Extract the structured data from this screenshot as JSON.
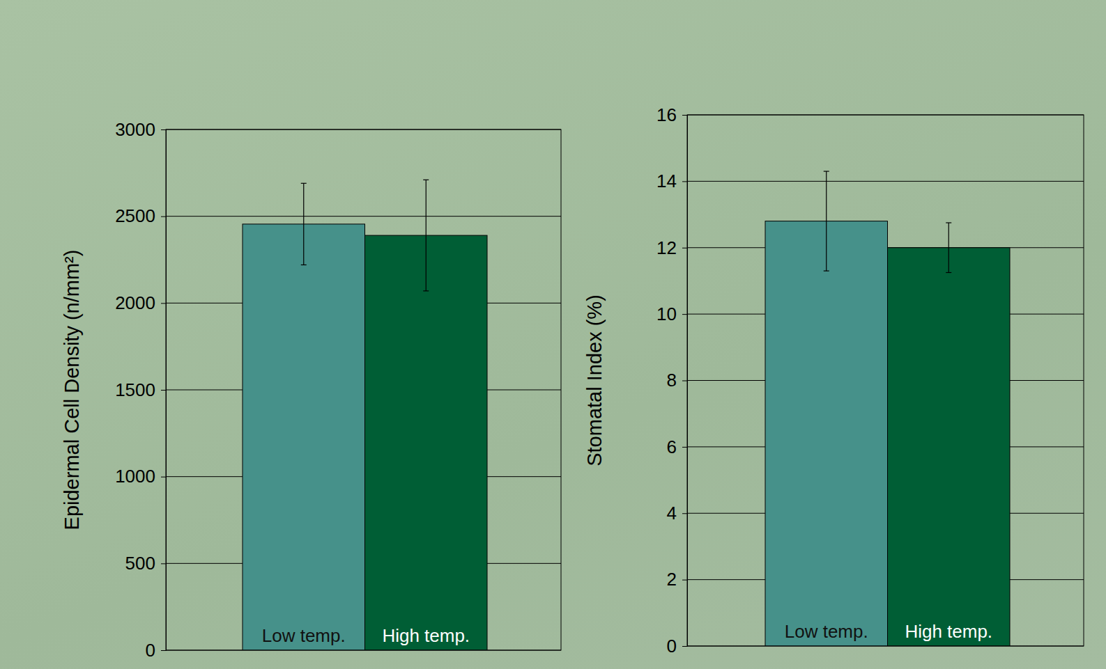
{
  "chart_data": [
    {
      "type": "bar",
      "y_label": "Epidermal Cell Density (n/mm²)",
      "categories": [
        "Low temp.",
        "High temp."
      ],
      "values": [
        2455,
        2390
      ],
      "errors": [
        235,
        320
      ],
      "colors": [
        "#46918a",
        "#005e35"
      ],
      "ylim": [
        0,
        3000
      ],
      "yticks": [
        0,
        500,
        1000,
        1500,
        2000,
        2500,
        3000
      ],
      "grid": true
    },
    {
      "type": "bar",
      "y_label": "Stomatal Index (%)",
      "categories": [
        "Low temp.",
        "High temp."
      ],
      "values": [
        12.8,
        12.0
      ],
      "errors": [
        1.5,
        0.75
      ],
      "colors": [
        "#46918a",
        "#005e35"
      ],
      "ylim": [
        0,
        16
      ],
      "yticks": [
        0,
        2,
        4,
        6,
        8,
        10,
        12,
        14,
        16
      ],
      "grid": true
    }
  ]
}
